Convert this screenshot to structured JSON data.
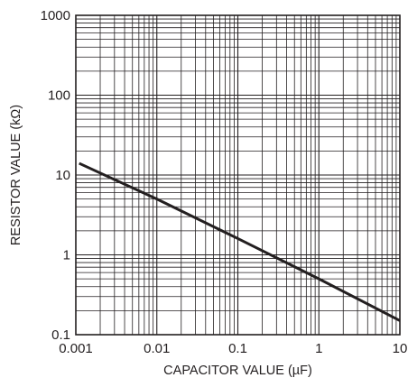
{
  "chart_data": {
    "type": "line",
    "title": "",
    "xlabel": "CAPACITOR VALUE (µF)",
    "ylabel": "RESISTOR VALUE (kΩ)",
    "xscale": "log",
    "yscale": "log",
    "xlim": [
      0.001,
      10
    ],
    "ylim": [
      0.1,
      1000
    ],
    "x_tick_labels": [
      "0.001",
      "0.01",
      "0.1",
      "1",
      "10"
    ],
    "y_tick_labels": [
      "0.1",
      "1",
      "10",
      "100",
      "1000"
    ],
    "x_tick_values": [
      0.001,
      0.01,
      0.1,
      1,
      10
    ],
    "y_tick_values": [
      0.1,
      1,
      10,
      100,
      1000
    ],
    "grid": true,
    "legend": "none",
    "series": [
      {
        "x": [
          0.0011,
          0.01,
          0.1,
          1,
          10
        ],
        "y": [
          14,
          5,
          1.6,
          0.5,
          0.15
        ]
      }
    ],
    "colors": {
      "line": "#231f20",
      "grid": "#231f20",
      "background": "#ffffff"
    }
  }
}
